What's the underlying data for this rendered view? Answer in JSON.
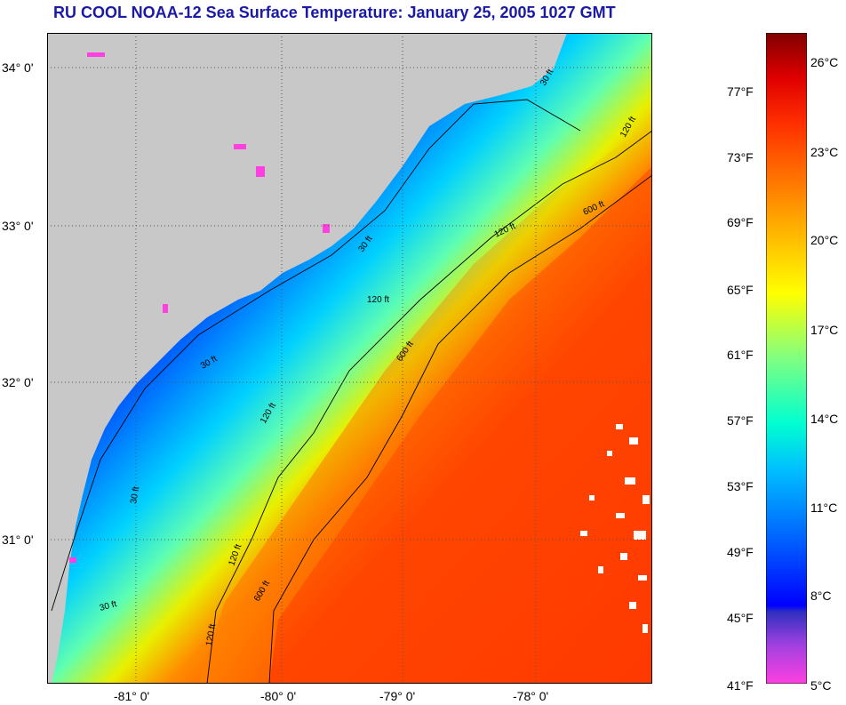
{
  "title": "RU COOL  NOAA-12  Sea Surface Temperature:  January 25, 2005 1027 GMT",
  "map": {
    "latitude_labels": [
      "34° 0'",
      "33° 0'",
      "32° 0'",
      "31° 0'"
    ],
    "longitude_labels": [
      "-81° 0'",
      "-80° 0'",
      "-79° 0'",
      "-78° 0'"
    ],
    "isobath_labels": [
      "30 ft",
      "120 ft",
      "600 ft",
      "30 ft",
      "120 ft",
      "600 ft",
      "120 ft",
      "30 ft",
      "120 ft",
      "600 ft",
      "30 ft",
      "120 ft",
      "30 ft",
      "120 ft"
    ],
    "colors": {
      "land": "#c8c8c8",
      "cloud": "#ffffff",
      "contour": "#000000",
      "gridline": "#555555"
    }
  },
  "colorbar": {
    "fahrenheit_labels": [
      "77°F",
      "73°F",
      "69°F",
      "65°F",
      "61°F",
      "57°F",
      "53°F",
      "49°F",
      "45°F",
      "41°F"
    ],
    "celsius_labels": [
      "26°C",
      "23°C",
      "20°C",
      "17°C",
      "14°C",
      "11°C",
      "8°C",
      "5°C"
    ],
    "range_celsius": [
      5,
      27
    ],
    "stops": [
      "#ff40e0",
      "#a040e0",
      "#3030c0",
      "#0000ff",
      "#0060ff",
      "#00c0ff",
      "#00ffd0",
      "#80ff80",
      "#ffff00",
      "#ffc000",
      "#ff8000",
      "#ff3000",
      "#e00000",
      "#800000"
    ]
  }
}
